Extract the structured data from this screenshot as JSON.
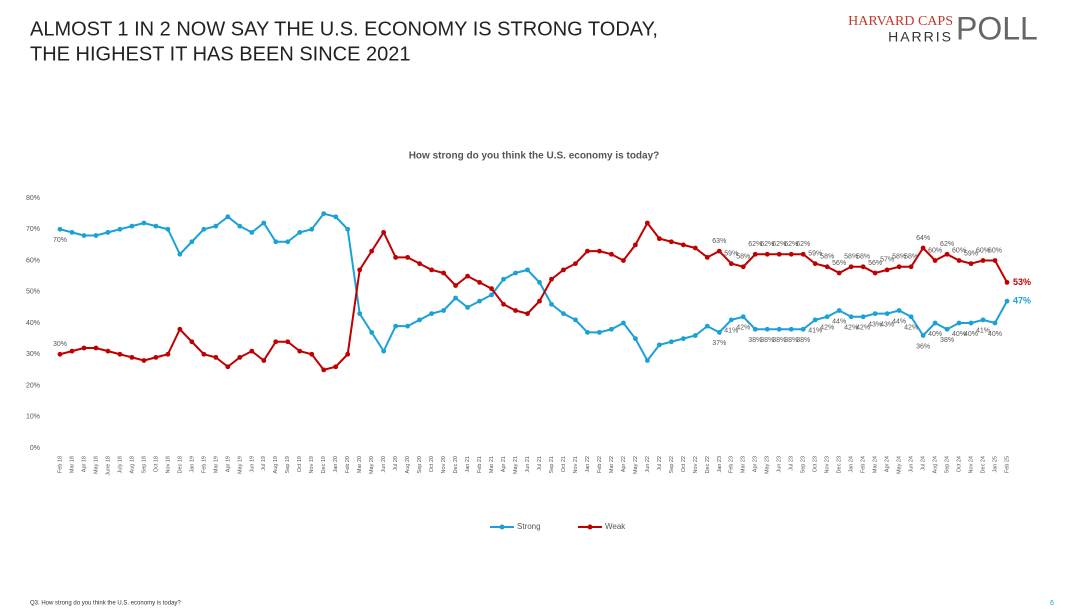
{
  "header": {
    "title_lines": [
      "ALMOST 1 IN 2 NOW SAY THE U.S. ECONOMY IS STRONG TODAY,",
      "THE HIGHEST IT HAS BEEN SINCE 2021"
    ],
    "logo": [
      "HARVARD CAPS",
      "HARRIS",
      "POLL"
    ]
  },
  "chart_data": {
    "type": "line",
    "title": "How strong do you think the U.S. economy is today?",
    "categories": [
      "Feb 18",
      "Mar 18",
      "Apr 18",
      "May 18",
      "June 18",
      "July 18",
      "Aug 18",
      "Sep 18",
      "Oct 18",
      "Nov 18",
      "Dec 18",
      "Jan 19",
      "Feb 19",
      "Mar 19",
      "Apr 19",
      "May 19",
      "Jun 19",
      "Jul 19",
      "Aug 19",
      "Sep 19",
      "Oct 19",
      "Nov 19",
      "Dec 19",
      "Jan 20",
      "Feb 20",
      "Mar 20",
      "May 20",
      "Jun 20",
      "Jul 20",
      "Aug 20",
      "Sep 20",
      "Oct 20",
      "Nov 20",
      "Dec 20",
      "Jan 21",
      "Feb 21",
      "Mar 21",
      "Apr 21",
      "May 21",
      "Jun 21",
      "Jul 21",
      "Sep 21",
      "Oct 21",
      "Nov 21",
      "Jan 22",
      "Feb 22",
      "Mar 22",
      "Apr 22",
      "May 22",
      "Jun 22",
      "Jul 22",
      "Sep 22",
      "Oct 22",
      "Nov 22",
      "Dec 22",
      "Jan 23",
      "Feb 23",
      "Mar 23",
      "Apr 23",
      "May 23",
      "Jun 23",
      "Jul 23",
      "Sep 23",
      "Oct 23",
      "Nov 23",
      "Dec 23",
      "Jan 24",
      "Feb 24",
      "Mar 24",
      "Apr 24",
      "May 24",
      "Jun 24",
      "Jul 24",
      "Aug 24",
      "Sep 24",
      "Oct 24",
      "Nov 24",
      "Dec 24",
      "Jan 25",
      "Feb 25"
    ],
    "series": [
      {
        "name": "Strong",
        "color": "#1ba1d8",
        "values": [
          70,
          69,
          68,
          68,
          69,
          70,
          71,
          72,
          71,
          70,
          62,
          66,
          70,
          71,
          74,
          71,
          69,
          72,
          66,
          66,
          69,
          70,
          75,
          74,
          70,
          43,
          37,
          31,
          39,
          39,
          41,
          43,
          44,
          48,
          45,
          47,
          49,
          54,
          56,
          57,
          53,
          46,
          43,
          41,
          37,
          37,
          38,
          40,
          35,
          28,
          33,
          34,
          35,
          36,
          39,
          37,
          41,
          42,
          38,
          38,
          38,
          38,
          38,
          41,
          42,
          44,
          42,
          42,
          43,
          43,
          44,
          42,
          36,
          40,
          38,
          40,
          40,
          41,
          40,
          47
        ],
        "value_labels": [
          "70%",
          null,
          null,
          null,
          null,
          null,
          null,
          null,
          null,
          null,
          null,
          null,
          null,
          null,
          null,
          null,
          null,
          null,
          null,
          null,
          null,
          null,
          null,
          null,
          null,
          null,
          null,
          null,
          null,
          null,
          null,
          null,
          null,
          null,
          null,
          null,
          null,
          null,
          null,
          null,
          null,
          null,
          null,
          null,
          null,
          null,
          null,
          null,
          null,
          null,
          null,
          null,
          null,
          null,
          null,
          "37%",
          "41%",
          "42%",
          "38%",
          "38%",
          "38%",
          "38%",
          "38%",
          "41%",
          "42%",
          "44%",
          "42%",
          "42%",
          "43%",
          "43%",
          "44%",
          "42%",
          "36%",
          "40%",
          "38%",
          "40%",
          "40%",
          "41%",
          "40%",
          "47%"
        ]
      },
      {
        "name": "Weak",
        "color": "#c00000",
        "values": [
          30,
          31,
          32,
          32,
          31,
          30,
          29,
          28,
          29,
          30,
          38,
          34,
          30,
          29,
          26,
          29,
          31,
          28,
          34,
          34,
          31,
          30,
          25,
          26,
          30,
          57,
          63,
          69,
          61,
          61,
          59,
          57,
          56,
          52,
          55,
          53,
          51,
          46,
          44,
          43,
          47,
          54,
          57,
          59,
          63,
          63,
          62,
          60,
          65,
          72,
          67,
          66,
          65,
          64,
          61,
          63,
          59,
          58,
          62,
          62,
          62,
          62,
          62,
          59,
          58,
          56,
          58,
          58,
          56,
          57,
          58,
          58,
          64,
          60,
          62,
          60,
          59,
          60,
          60,
          53
        ],
        "value_labels": [
          "30%",
          null,
          null,
          null,
          null,
          null,
          null,
          null,
          null,
          null,
          null,
          null,
          null,
          null,
          null,
          null,
          null,
          null,
          null,
          null,
          null,
          null,
          null,
          null,
          null,
          null,
          null,
          null,
          null,
          null,
          null,
          null,
          null,
          null,
          null,
          null,
          null,
          null,
          null,
          null,
          null,
          null,
          null,
          null,
          null,
          null,
          null,
          null,
          null,
          null,
          null,
          null,
          null,
          null,
          null,
          "63%",
          "59%",
          "58%",
          "62%",
          "62%",
          "62%",
          "62%",
          "62%",
          "59%",
          "58%",
          "56%",
          "58%",
          "58%",
          "56%",
          "57%",
          "58%",
          "58%",
          "64%",
          "60%",
          "62%",
          "60%",
          "59%",
          "60%",
          "60%",
          "53%"
        ]
      }
    ],
    "ylim": [
      0,
      80
    ],
    "yticks": [
      {
        "value": 0,
        "label": "0%"
      },
      {
        "value": 10,
        "label": "10%"
      },
      {
        "value": 20,
        "label": "20%"
      },
      {
        "value": 30,
        "label": "30%"
      },
      {
        "value": 40,
        "label": "40%"
      },
      {
        "value": 50,
        "label": "50%"
      },
      {
        "value": 60,
        "label": "60%"
      },
      {
        "value": 70,
        "label": "70%"
      },
      {
        "value": 80,
        "label": "80%"
      }
    ],
    "grid": false,
    "legend": "bottom"
  },
  "footer": {
    "note": "Q3. How strong do you think the U.S. economy is today?",
    "page": "6"
  }
}
